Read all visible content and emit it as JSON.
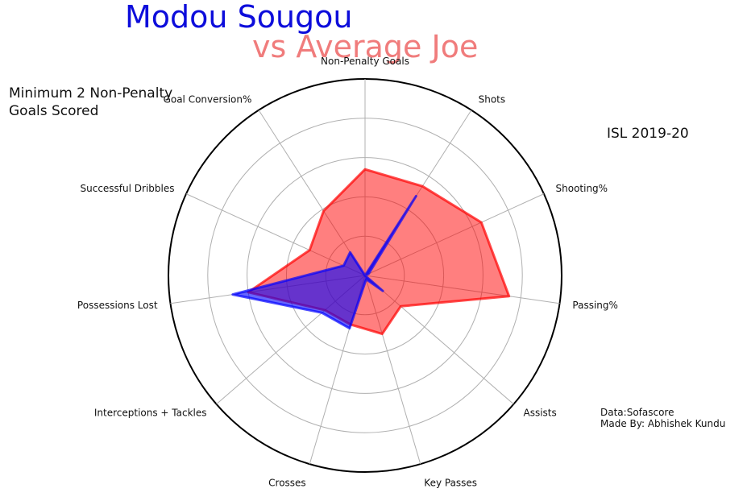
{
  "colors": {
    "player": "#0000ff",
    "comparison": "#ff0000",
    "player_title": "#0d0ddb",
    "comparison_title": "#f07c7c",
    "grid": "#b0b0b0",
    "outer_ring": "#000000"
  },
  "titles": {
    "player": "Modou Sougou",
    "comparison": "vs Average Joe",
    "subtitle_line1": "Minimum 2 Non-Penalty",
    "subtitle_line2": "Goals Scored",
    "league": "ISL 2019-20",
    "source": "Data:Sofascore",
    "author": "Made By: Abhishek Kundu"
  },
  "chart_data": {
    "type": "radar",
    "categories": [
      "Non-Penalty Goals",
      "Shots",
      "Shooting%",
      "Passing%",
      "Assists",
      "Key Passes",
      "Crosses",
      "Interceptions + Tackles",
      "Possessions Lost",
      "Successful Dribbles",
      "Goal Conversion%"
    ],
    "rlim": [
      0,
      100
    ],
    "grid_rings": [
      20,
      40,
      60,
      80,
      100
    ],
    "grid": true,
    "tick_labels_shown": false,
    "series": [
      {
        "role": "player",
        "values": [
          0,
          48,
          2,
          0,
          12,
          2,
          28,
          29,
          68,
          12,
          14
        ]
      },
      {
        "role": "comparison",
        "values": [
          54,
          54,
          65,
          74,
          24,
          31,
          26,
          27,
          60,
          31,
          39
        ]
      }
    ]
  }
}
